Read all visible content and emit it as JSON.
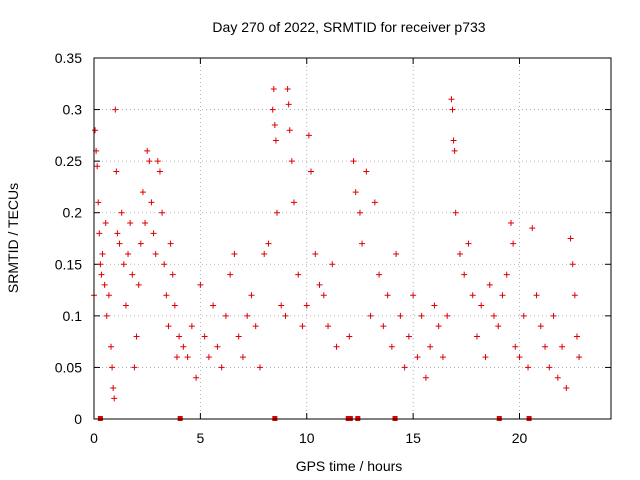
{
  "chart_data": {
    "type": "scatter",
    "title": "Day 270 of 2022, SRMTID for receiver p733",
    "xlabel": "GPS time / hours",
    "ylabel": "SRMTID / TECUs",
    "xlim": [
      0,
      24.3
    ],
    "ylim": [
      0,
      0.35
    ],
    "xticks": [
      0,
      5,
      10,
      15,
      20
    ],
    "xtick_labels": [
      "0",
      "5",
      "10",
      "15",
      "20"
    ],
    "yticks": [
      0,
      0.05,
      0.1,
      0.15,
      0.2,
      0.25,
      0.3,
      0.35
    ],
    "ytick_labels": [
      "0",
      "0.05",
      "0.1",
      "0.15",
      "0.2",
      "0.25",
      "0.3",
      "0.35"
    ],
    "grid": true,
    "marker": "plus",
    "color": "#e00000",
    "series": [
      {
        "name": "SRMTID",
        "points": [
          [
            0.0,
            0.12
          ],
          [
            0.05,
            0.28
          ],
          [
            0.1,
            0.26
          ],
          [
            0.15,
            0.245
          ],
          [
            0.2,
            0.21
          ],
          [
            0.25,
            0.18
          ],
          [
            0.3,
            0.15
          ],
          [
            0.35,
            0.14
          ],
          [
            0.4,
            0.16
          ],
          [
            0.5,
            0.13
          ],
          [
            0.55,
            0.19
          ],
          [
            0.6,
            0.1
          ],
          [
            0.7,
            0.12
          ],
          [
            0.8,
            0.07
          ],
          [
            0.85,
            0.05
          ],
          [
            0.9,
            0.03
          ],
          [
            0.95,
            0.02
          ],
          [
            1.0,
            0.3
          ],
          [
            1.05,
            0.24
          ],
          [
            1.1,
            0.18
          ],
          [
            1.2,
            0.17
          ],
          [
            1.3,
            0.2
          ],
          [
            1.4,
            0.15
          ],
          [
            1.5,
            0.11
          ],
          [
            1.6,
            0.16
          ],
          [
            1.7,
            0.19
          ],
          [
            1.8,
            0.14
          ],
          [
            1.9,
            0.05
          ],
          [
            2.0,
            0.08
          ],
          [
            2.1,
            0.13
          ],
          [
            2.2,
            0.17
          ],
          [
            2.3,
            0.22
          ],
          [
            2.4,
            0.19
          ],
          [
            2.5,
            0.26
          ],
          [
            2.6,
            0.25
          ],
          [
            2.7,
            0.21
          ],
          [
            2.8,
            0.18
          ],
          [
            2.9,
            0.16
          ],
          [
            3.0,
            0.25
          ],
          [
            3.1,
            0.24
          ],
          [
            3.2,
            0.2
          ],
          [
            3.3,
            0.15
          ],
          [
            3.4,
            0.12
          ],
          [
            3.5,
            0.09
          ],
          [
            3.6,
            0.17
          ],
          [
            3.7,
            0.14
          ],
          [
            3.8,
            0.11
          ],
          [
            3.9,
            0.06
          ],
          [
            4.0,
            0.08
          ],
          [
            4.2,
            0.07
          ],
          [
            4.4,
            0.06
          ],
          [
            4.6,
            0.09
          ],
          [
            4.8,
            0.04
          ],
          [
            5.0,
            0.13
          ],
          [
            5.2,
            0.08
          ],
          [
            5.4,
            0.06
          ],
          [
            5.6,
            0.11
          ],
          [
            5.8,
            0.07
          ],
          [
            6.0,
            0.05
          ],
          [
            6.2,
            0.1
          ],
          [
            6.4,
            0.14
          ],
          [
            6.6,
            0.16
          ],
          [
            6.8,
            0.08
          ],
          [
            7.0,
            0.06
          ],
          [
            7.2,
            0.1
          ],
          [
            7.4,
            0.12
          ],
          [
            7.6,
            0.09
          ],
          [
            7.8,
            0.05
          ],
          [
            8.0,
            0.16
          ],
          [
            8.2,
            0.17
          ],
          [
            8.4,
            0.3
          ],
          [
            8.45,
            0.32
          ],
          [
            8.5,
            0.285
          ],
          [
            8.55,
            0.27
          ],
          [
            8.6,
            0.2
          ],
          [
            8.8,
            0.11
          ],
          [
            9.0,
            0.1
          ],
          [
            9.1,
            0.32
          ],
          [
            9.15,
            0.305
          ],
          [
            9.2,
            0.28
          ],
          [
            9.3,
            0.25
          ],
          [
            9.4,
            0.21
          ],
          [
            9.6,
            0.14
          ],
          [
            9.8,
            0.09
          ],
          [
            10.0,
            0.11
          ],
          [
            10.1,
            0.275
          ],
          [
            10.2,
            0.24
          ],
          [
            10.4,
            0.16
          ],
          [
            10.6,
            0.13
          ],
          [
            10.8,
            0.12
          ],
          [
            11.0,
            0.09
          ],
          [
            11.2,
            0.15
          ],
          [
            11.4,
            0.07
          ],
          [
            12.0,
            0.08
          ],
          [
            12.2,
            0.25
          ],
          [
            12.3,
            0.22
          ],
          [
            12.5,
            0.2
          ],
          [
            12.6,
            0.17
          ],
          [
            12.8,
            0.24
          ],
          [
            13.0,
            0.1
          ],
          [
            13.2,
            0.21
          ],
          [
            13.4,
            0.14
          ],
          [
            13.6,
            0.09
          ],
          [
            13.8,
            0.12
          ],
          [
            14.0,
            0.07
          ],
          [
            14.2,
            0.16
          ],
          [
            14.4,
            0.1
          ],
          [
            14.6,
            0.05
          ],
          [
            14.8,
            0.08
          ],
          [
            15.0,
            0.12
          ],
          [
            15.2,
            0.06
          ],
          [
            15.4,
            0.1
          ],
          [
            15.6,
            0.04
          ],
          [
            15.8,
            0.07
          ],
          [
            16.0,
            0.11
          ],
          [
            16.2,
            0.09
          ],
          [
            16.4,
            0.06
          ],
          [
            16.6,
            0.1
          ],
          [
            16.8,
            0.31
          ],
          [
            16.85,
            0.3
          ],
          [
            16.9,
            0.27
          ],
          [
            16.95,
            0.26
          ],
          [
            17.0,
            0.2
          ],
          [
            17.2,
            0.16
          ],
          [
            17.4,
            0.14
          ],
          [
            17.6,
            0.17
          ],
          [
            17.8,
            0.12
          ],
          [
            18.0,
            0.08
          ],
          [
            18.2,
            0.11
          ],
          [
            18.4,
            0.06
          ],
          [
            18.6,
            0.13
          ],
          [
            18.8,
            0.1
          ],
          [
            19.0,
            0.09
          ],
          [
            19.2,
            0.12
          ],
          [
            19.4,
            0.14
          ],
          [
            19.6,
            0.19
          ],
          [
            19.7,
            0.17
          ],
          [
            19.8,
            0.07
          ],
          [
            20.0,
            0.06
          ],
          [
            20.2,
            0.1
          ],
          [
            20.4,
            0.05
          ],
          [
            20.6,
            0.185
          ],
          [
            20.8,
            0.12
          ],
          [
            21.0,
            0.09
          ],
          [
            21.2,
            0.07
          ],
          [
            21.4,
            0.05
          ],
          [
            21.6,
            0.1
          ],
          [
            21.8,
            0.04
          ],
          [
            22.0,
            0.07
          ],
          [
            22.2,
            0.03
          ],
          [
            22.4,
            0.175
          ],
          [
            22.5,
            0.15
          ],
          [
            22.6,
            0.12
          ],
          [
            22.7,
            0.08
          ],
          [
            22.8,
            0.06
          ]
        ]
      }
    ],
    "gap_markers_x": [
      0.3,
      4.05,
      8.5,
      11.95,
      12.05,
      12.4,
      14.15,
      19.05,
      20.45
    ]
  }
}
